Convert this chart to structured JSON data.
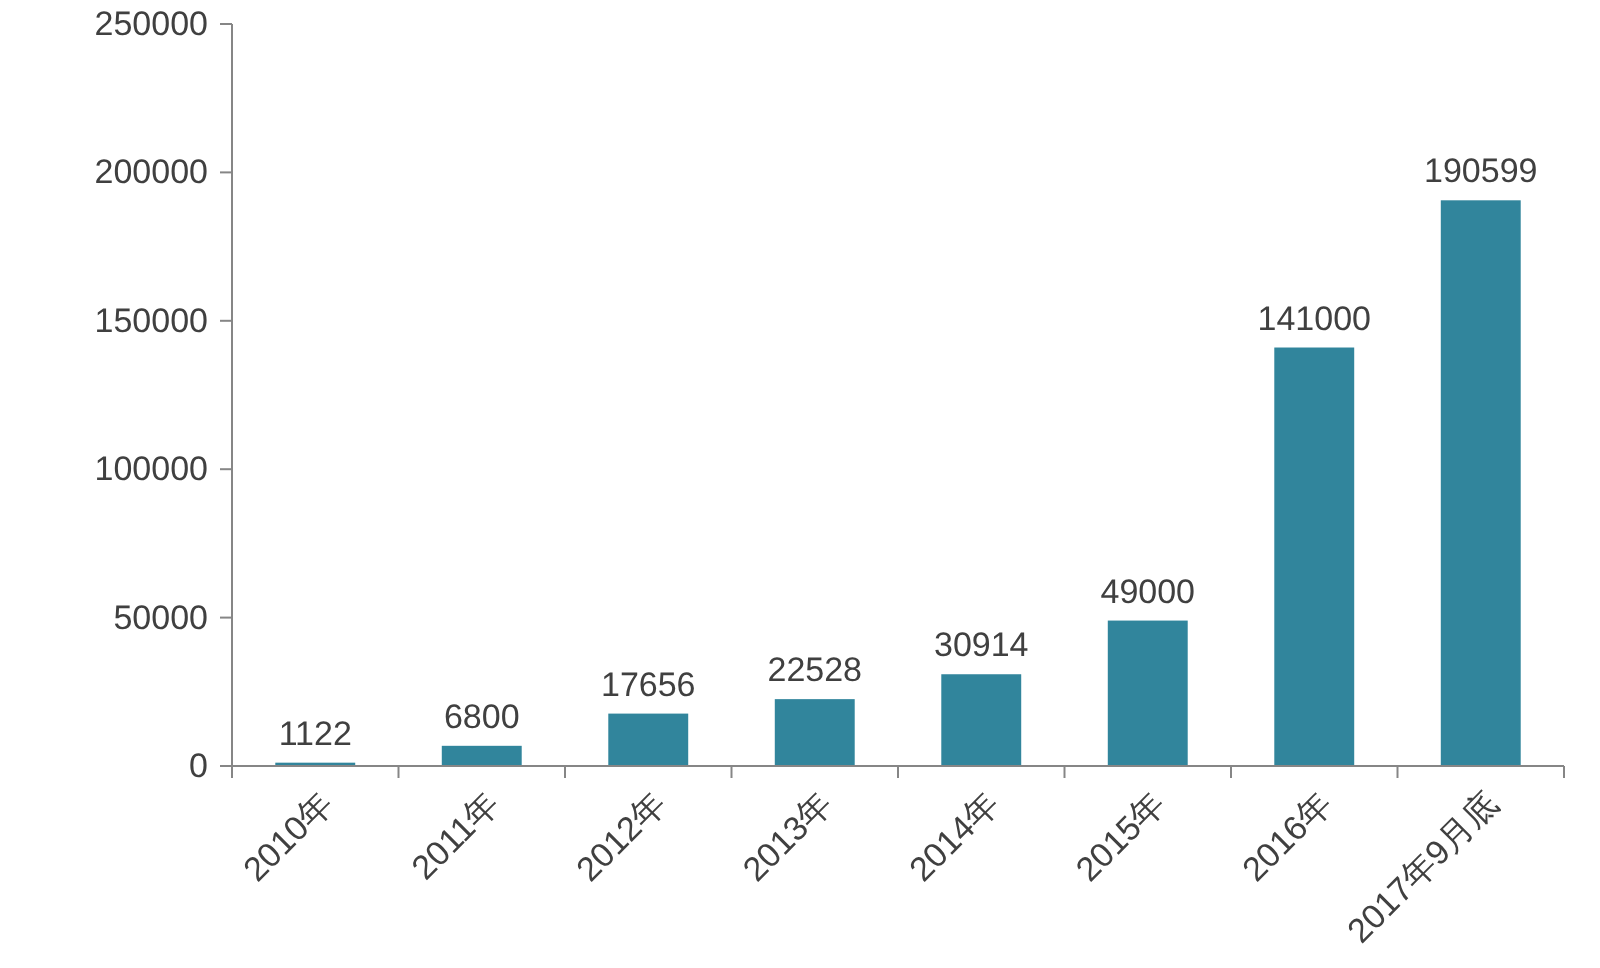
{
  "chart_data": {
    "type": "bar",
    "categories": [
      "2010年",
      "2011年",
      "2012年",
      "2013年",
      "2014年",
      "2015年",
      "2016年",
      "2017年9月底"
    ],
    "values": [
      1122,
      6800,
      17656,
      22528,
      30914,
      49000,
      141000,
      190599
    ],
    "color": "#31859c",
    "ylim": [
      0,
      250000
    ],
    "yticks": [
      0,
      50000,
      100000,
      150000,
      200000,
      250000
    ],
    "data_labels": true
  }
}
